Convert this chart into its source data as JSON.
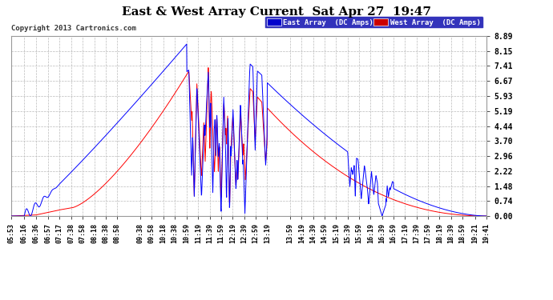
{
  "title": "East & West Array Current  Sat Apr 27  19:47",
  "copyright": "Copyright 2013 Cartronics.com",
  "legend_east": "East Array  (DC Amps)",
  "legend_west": "West Array  (DC Amps)",
  "east_color": "#0000ff",
  "west_color": "#ff0000",
  "background_color": "#ffffff",
  "grid_color": "#bbbbbb",
  "ylim": [
    0.0,
    8.89
  ],
  "yticks": [
    0.0,
    0.74,
    1.48,
    2.22,
    2.96,
    3.7,
    4.44,
    5.19,
    5.93,
    6.67,
    7.41,
    8.15,
    8.89
  ],
  "xtick_labels": [
    "05:53",
    "06:16",
    "06:36",
    "06:57",
    "07:17",
    "07:38",
    "07:58",
    "08:18",
    "08:38",
    "08:58",
    "09:38",
    "09:58",
    "10:18",
    "10:38",
    "10:59",
    "11:19",
    "11:39",
    "11:59",
    "12:19",
    "12:39",
    "12:59",
    "13:19",
    "13:59",
    "14:19",
    "14:39",
    "14:59",
    "15:19",
    "15:39",
    "15:59",
    "16:19",
    "16:39",
    "16:59",
    "17:19",
    "17:39",
    "17:59",
    "18:19",
    "18:39",
    "18:59",
    "19:21",
    "19:41"
  ],
  "title_fontsize": 11,
  "copyright_fontsize": 6.5,
  "legend_fontsize": 6.5,
  "tick_fontsize": 6,
  "ytick_fontsize": 7
}
